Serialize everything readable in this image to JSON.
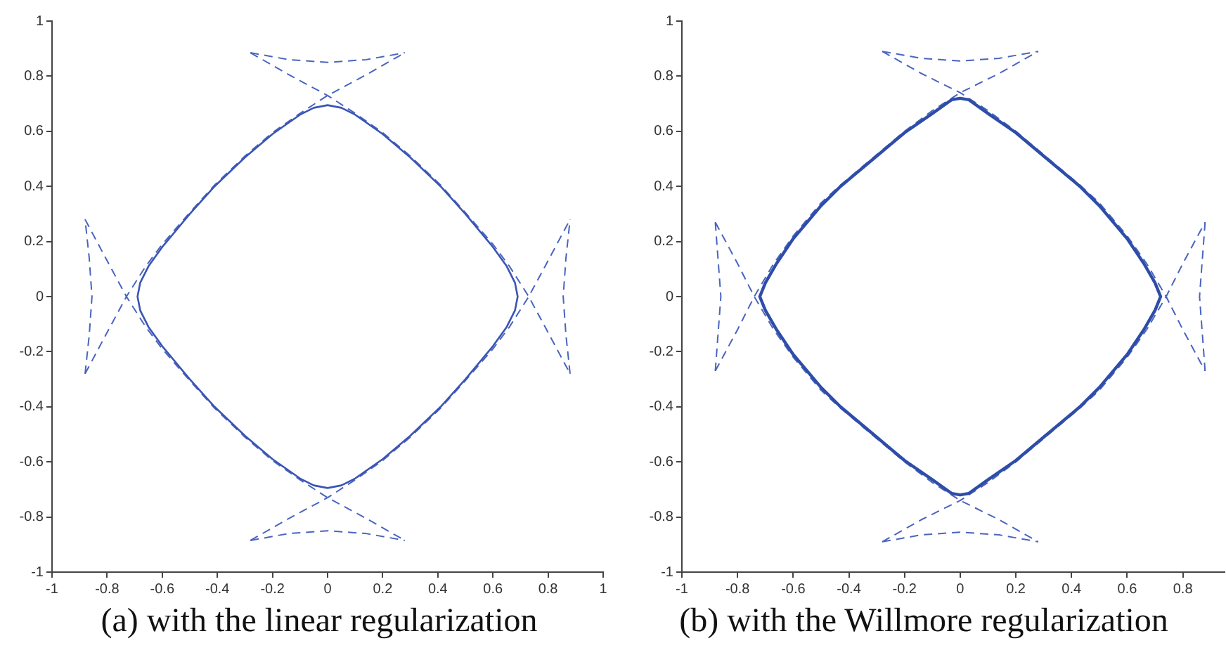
{
  "chart_data": [
    {
      "type": "line",
      "title": "(a)  with the linear regularization",
      "xlim": [
        -1,
        1
      ],
      "ylim": [
        -1,
        1
      ],
      "xticks": [
        -1,
        -0.8,
        -0.6,
        -0.4,
        -0.2,
        0,
        0.2,
        0.4,
        0.6,
        0.8,
        1
      ],
      "yticks": [
        -1,
        -0.8,
        -0.6,
        -0.4,
        -0.2,
        0,
        0.2,
        0.4,
        0.6,
        0.8,
        1
      ],
      "grid": false,
      "legend": false,
      "marker": "none",
      "series": [
        {
          "color": "#4a64bf",
          "line_style": "dashed",
          "x": [
            -0.88,
            -0.8,
            -0.73,
            -0.66,
            -0.6,
            -0.5,
            -0.41,
            -0.3,
            -0.2,
            -0.1,
            0,
            0.14,
            0.28
          ],
          "values": [
            -0.28,
            -0.13,
            0,
            0.11,
            0.19,
            0.305,
            0.405,
            0.51,
            0.595,
            0.665,
            0.73,
            0.805,
            0.885
          ]
        },
        {
          "color": "#4a64bf",
          "line_style": "dashed",
          "x": [
            -0.88,
            -0.8,
            -0.73,
            -0.66,
            -0.6,
            -0.5,
            -0.41,
            -0.3,
            -0.2,
            -0.1,
            0,
            0.14,
            0.28
          ],
          "values": [
            0.28,
            0.13,
            0,
            -0.11,
            -0.19,
            -0.305,
            -0.405,
            -0.51,
            -0.595,
            -0.665,
            -0.73,
            -0.805,
            -0.885
          ]
        },
        {
          "color": "#4a64bf",
          "line_style": "dashed",
          "x": [
            -0.28,
            -0.14,
            0,
            0.1,
            0.2,
            0.3,
            0.41,
            0.5,
            0.6,
            0.66,
            0.73,
            0.8,
            0.88
          ],
          "values": [
            -0.885,
            -0.805,
            -0.73,
            -0.665,
            -0.595,
            -0.51,
            -0.405,
            -0.305,
            -0.19,
            -0.11,
            0,
            0.13,
            0.28
          ]
        },
        {
          "color": "#4a64bf",
          "line_style": "dashed",
          "x": [
            -0.28,
            -0.14,
            0,
            0.1,
            0.2,
            0.3,
            0.41,
            0.5,
            0.6,
            0.66,
            0.73,
            0.8,
            0.88
          ],
          "values": [
            0.885,
            0.805,
            0.73,
            0.665,
            0.595,
            0.51,
            0.405,
            0.305,
            0.19,
            0.11,
            0,
            -0.13,
            -0.28
          ]
        },
        {
          "color": "#4a64bf",
          "line_style": "dashed",
          "x": [
            -0.28,
            -0.14,
            0,
            0.14,
            0.28
          ],
          "values": [
            0.885,
            0.86,
            0.85,
            0.86,
            0.885
          ]
        },
        {
          "color": "#4a64bf",
          "line_style": "dashed",
          "x": [
            -0.28,
            -0.14,
            0,
            0.14,
            0.28
          ],
          "values": [
            -0.885,
            -0.86,
            -0.85,
            -0.86,
            -0.885
          ]
        },
        {
          "color": "#4a64bf",
          "line_style": "dashed",
          "x": [
            -0.88,
            -0.865,
            -0.855,
            -0.865,
            -0.88
          ],
          "values": [
            -0.28,
            -0.14,
            0,
            0.14,
            0.28
          ]
        },
        {
          "color": "#4a64bf",
          "line_style": "dashed",
          "x": [
            0.88,
            0.865,
            0.855,
            0.865,
            0.88
          ],
          "values": [
            -0.28,
            -0.14,
            0,
            0.14,
            0.28
          ]
        }
      ]
    },
    {
      "type": "line",
      "title": "(b)  with the Willmore regularization",
      "xlim": [
        -1,
        0.95
      ],
      "ylim": [
        -1,
        1
      ],
      "xticks": [
        -1,
        -0.8,
        -0.6,
        -0.4,
        -0.2,
        0,
        0.2,
        0.4,
        0.6,
        0.8
      ],
      "yticks": [
        -1,
        -0.8,
        -0.6,
        -0.4,
        -0.2,
        0,
        0.2,
        0.4,
        0.6,
        0.8,
        1
      ],
      "grid": false,
      "legend": false,
      "marker": "none",
      "series": [
        {
          "color": "#4a64bf",
          "line_style": "dashed",
          "x": [
            -0.88,
            -0.8,
            -0.74,
            -0.67,
            -0.6,
            -0.5,
            -0.43,
            -0.3,
            -0.2,
            -0.1,
            0,
            0.14,
            0.28
          ],
          "values": [
            -0.27,
            -0.12,
            0,
            0.12,
            0.22,
            0.34,
            0.405,
            0.515,
            0.6,
            0.675,
            0.74,
            0.81,
            0.89
          ]
        },
        {
          "color": "#4a64bf",
          "line_style": "dashed",
          "x": [
            -0.88,
            -0.8,
            -0.74,
            -0.67,
            -0.6,
            -0.5,
            -0.43,
            -0.3,
            -0.2,
            -0.1,
            0,
            0.14,
            0.28
          ],
          "values": [
            0.27,
            0.12,
            0,
            -0.12,
            -0.22,
            -0.34,
            -0.405,
            -0.515,
            -0.6,
            -0.675,
            -0.74,
            -0.81,
            -0.89
          ]
        },
        {
          "color": "#4a64bf",
          "line_style": "dashed",
          "x": [
            -0.28,
            -0.14,
            0,
            0.1,
            0.2,
            0.3,
            0.43,
            0.5,
            0.6,
            0.67,
            0.74,
            0.8,
            0.88
          ],
          "values": [
            -0.89,
            -0.81,
            -0.74,
            -0.675,
            -0.6,
            -0.515,
            -0.405,
            -0.34,
            -0.22,
            -0.12,
            0,
            0.12,
            0.27
          ]
        },
        {
          "color": "#4a64bf",
          "line_style": "dashed",
          "x": [
            -0.28,
            -0.14,
            0,
            0.1,
            0.2,
            0.3,
            0.43,
            0.5,
            0.6,
            0.67,
            0.74,
            0.8,
            0.88
          ],
          "values": [
            0.89,
            0.81,
            0.74,
            0.675,
            0.6,
            0.515,
            0.405,
            0.34,
            0.22,
            0.12,
            0,
            -0.12,
            -0.27
          ]
        },
        {
          "color": "#4a64bf",
          "line_style": "dashed",
          "x": [
            -0.28,
            -0.14,
            0,
            0.14,
            0.28
          ],
          "values": [
            0.89,
            0.865,
            0.855,
            0.865,
            0.89
          ]
        },
        {
          "color": "#4a64bf",
          "line_style": "dashed",
          "x": [
            -0.28,
            -0.14,
            0,
            0.14,
            0.28
          ],
          "values": [
            -0.89,
            -0.865,
            -0.855,
            -0.865,
            -0.89
          ]
        },
        {
          "color": "#4a64bf",
          "line_style": "dashed",
          "x": [
            -0.88,
            -0.87,
            -0.86,
            -0.87,
            -0.88
          ],
          "values": [
            -0.27,
            -0.135,
            0,
            0.135,
            0.27
          ]
        },
        {
          "color": "#4a64bf",
          "line_style": "dashed",
          "x": [
            0.88,
            0.87,
            0.86,
            0.87,
            0.88
          ],
          "values": [
            -0.27,
            -0.135,
            0,
            0.135,
            0.27
          ]
        }
      ]
    }
  ]
}
